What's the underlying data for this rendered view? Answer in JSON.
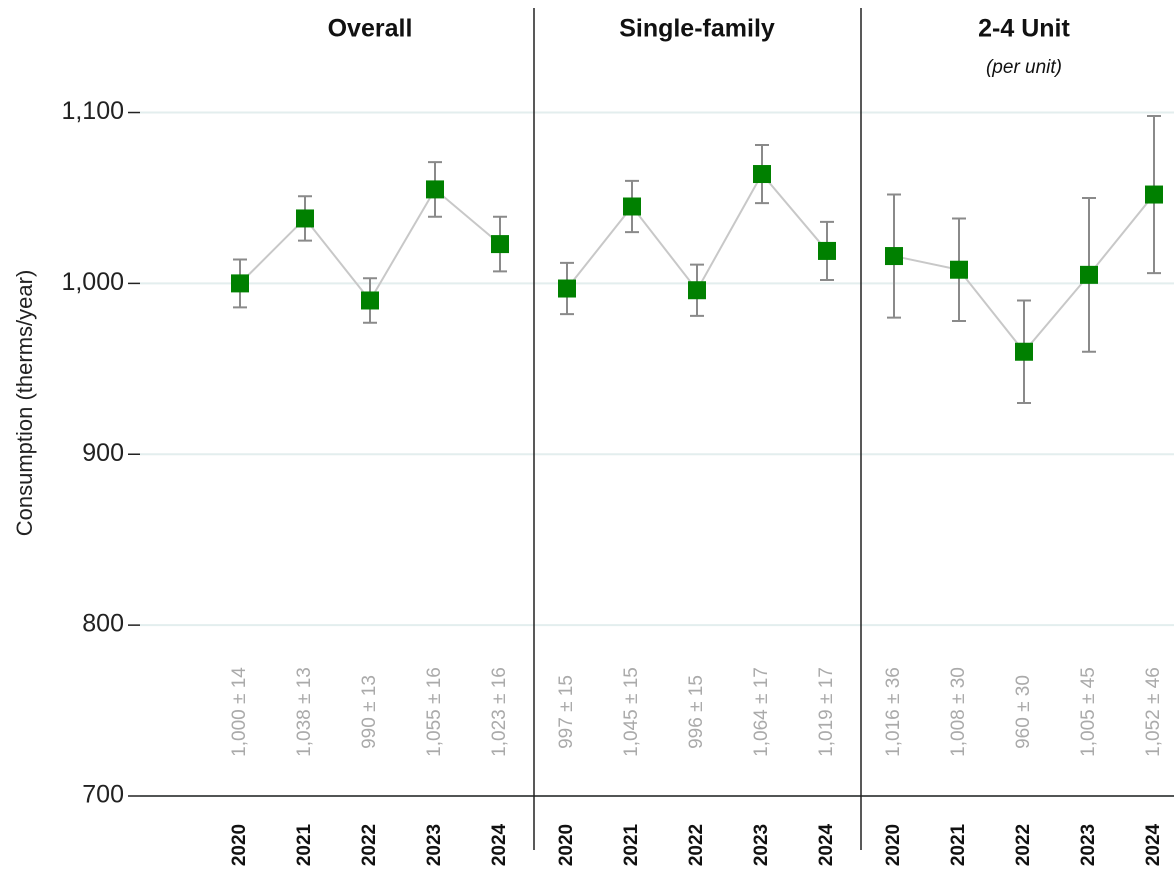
{
  "chart_data": [
    {
      "type": "errorbar",
      "title": "Overall",
      "ylabel": "Consumption (therms/year)",
      "categories": [
        "2020",
        "2021",
        "2022",
        "2023",
        "2024"
      ],
      "values": [
        1000,
        1038,
        990,
        1055,
        1023
      ],
      "errors": [
        14,
        13,
        13,
        16,
        16
      ],
      "value_labels": [
        "1,000 ± 14",
        "1,038 ± 13",
        "990 ± 13",
        "1,055 ± 16",
        "1,023 ± 16"
      ],
      "color": "#008000",
      "ylim": [
        700,
        1160
      ],
      "yticks": [
        700,
        800,
        900,
        {
          "value": 1000,
          "label": "1,000"
        },
        {
          "value": 1100,
          "label": "1,100"
        }
      ],
      "grid": true
    },
    {
      "type": "errorbar",
      "title": "Single-family",
      "categories": [
        "2020",
        "2021",
        "2022",
        "2023",
        "2024"
      ],
      "values": [
        997,
        1045,
        996,
        1064,
        1019
      ],
      "errors": [
        15,
        15,
        15,
        17,
        17
      ],
      "value_labels": [
        "997 ± 15",
        "1,045 ± 15",
        "996 ± 15",
        "1,064 ± 17",
        "1,019 ± 17"
      ],
      "color": "#008000",
      "ylim": [
        700,
        1160
      ]
    },
    {
      "type": "errorbar",
      "title": "2-4 Unit",
      "subtitle": "(per unit)",
      "categories": [
        "2020",
        "2021",
        "2022",
        "2023",
        "2024"
      ],
      "values": [
        1016,
        1008,
        960,
        1005,
        1052
      ],
      "errors": [
        36,
        30,
        30,
        45,
        46
      ],
      "value_labels": [
        "1,016 ± 36",
        "1,008 ± 30",
        "960 ± 30",
        "1,005 ± 45",
        "1,052 ± 46"
      ],
      "color": "#008000",
      "ylim": [
        700,
        1160
      ]
    }
  ]
}
